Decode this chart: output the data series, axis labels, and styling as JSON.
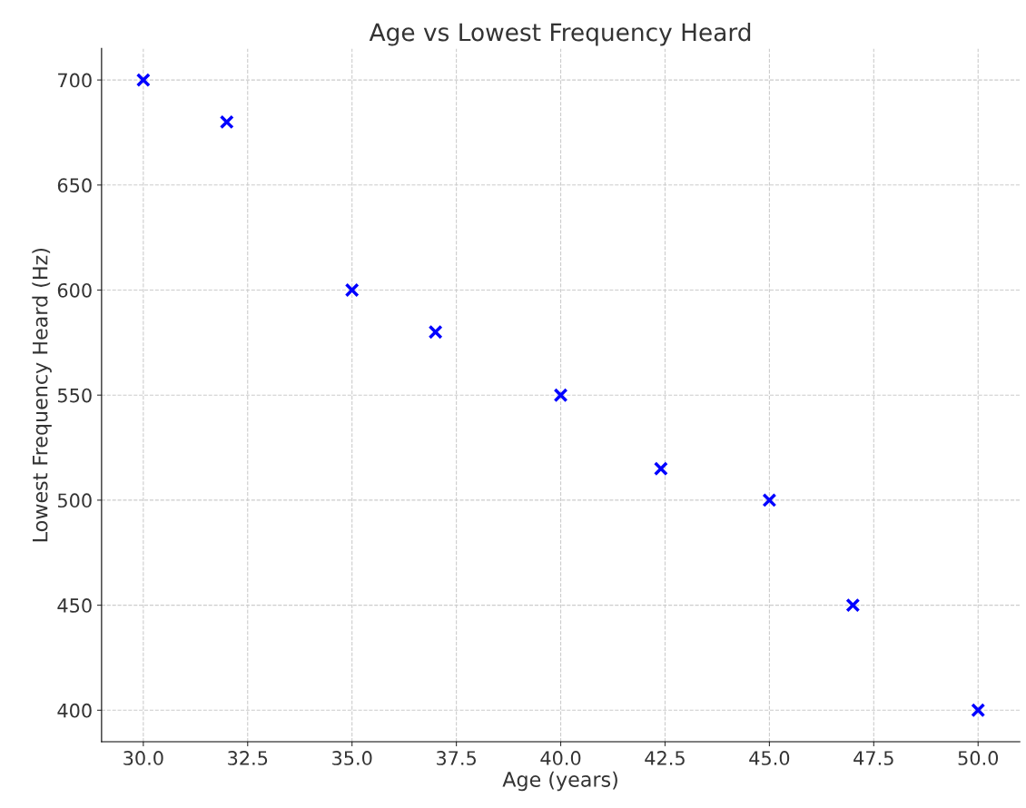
{
  "chart_data": {
    "type": "scatter",
    "title": "Age vs Lowest Frequency Heard",
    "xlabel": "Age (years)",
    "ylabel": "Lowest Frequency Heard (Hz)",
    "x": [
      30,
      32,
      35,
      37,
      40,
      42.4,
      45,
      47,
      50
    ],
    "series": [
      {
        "color": "#0000ff",
        "values": [
          700,
          680,
          600,
          580,
          550,
          515,
          500,
          450,
          400
        ]
      }
    ],
    "marker": "cross",
    "grid": true,
    "xlim": [
      29,
      51
    ],
    "ylim": [
      385,
      715
    ],
    "xticks": [
      {
        "value": 30,
        "label": "30.0"
      },
      {
        "value": 32.5,
        "label": "32.5"
      },
      {
        "value": 35,
        "label": "35.0"
      },
      {
        "value": 37.5,
        "label": "37.5"
      },
      {
        "value": 40,
        "label": "40.0"
      },
      {
        "value": 42.5,
        "label": "42.5"
      },
      {
        "value": 45,
        "label": "45.0"
      },
      {
        "value": 47.5,
        "label": "47.5"
      },
      {
        "value": 50,
        "label": "50.0"
      }
    ],
    "yticks": [
      400,
      450,
      500,
      550,
      600,
      650,
      700
    ]
  }
}
